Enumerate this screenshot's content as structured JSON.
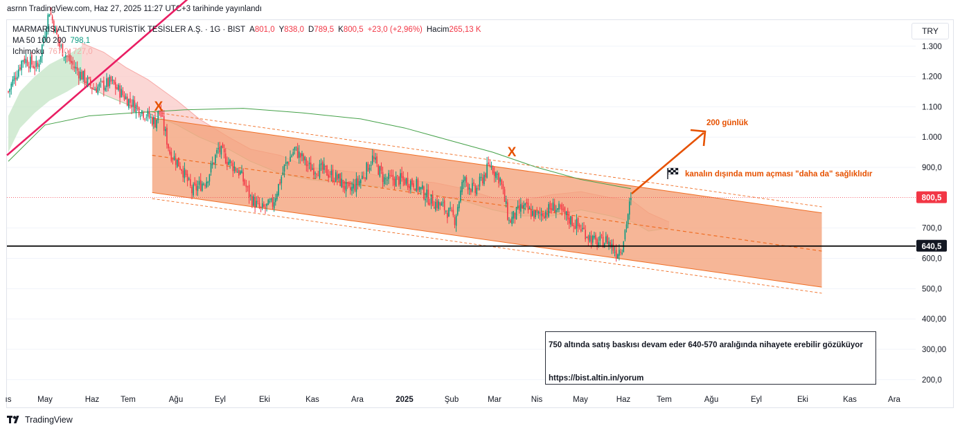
{
  "header": {
    "published": "asrnn TradingView.com, Haz 27, 2025 11:27 UTC+3 tarihinde yayınlandı"
  },
  "legend": {
    "symbol": "MARMARİS ALTINYUNUS TURİSTİK TESİSLER A.Ş. · 1G · BIST",
    "ohlc": [
      {
        "label": "A",
        "value": "801,0"
      },
      {
        "label": "Y",
        "value": "838,0"
      },
      {
        "label": "D",
        "value": "789,5"
      },
      {
        "label": "K",
        "value": "800,5"
      }
    ],
    "change": "+23,0 (+2,96%)",
    "volume_label": "Hacim",
    "volume_value": "265,13 K",
    "ma_label": "MA 50 100 200",
    "ma_value": "798,1",
    "ichimoku_label": "Ichimoku",
    "ichimoku_values": [
      "767,0",
      "727,0"
    ]
  },
  "currency": "TRY",
  "colors": {
    "up": "#089981",
    "down": "#f23645",
    "channel_fill": "#f4a27a",
    "channel_line": "#f06d23",
    "trendline": "#e91e63",
    "ma": "#43a047",
    "cloud_red": "#f9c9c7",
    "cloud_green": "#c8e6c9",
    "support": "#000000",
    "annotation": "#e65100"
  },
  "annotations": {
    "arrow_label": "200 günlük",
    "flag_text": "kanalın dışında mum açması \"daha da\" sağlıklıdır",
    "marks": [
      "X",
      "X"
    ],
    "note_line1": "750 altında satış baskısı devam eder 640-570 aralığında nihayete erebilir gözüküyor",
    "note_line2": "https://bist.altin.in/yorum"
  },
  "chart_data": {
    "type": "candlestick",
    "y_ticks": [
      "1.300",
      "1.200",
      "1.100",
      "1.000",
      "900,0",
      "700,0",
      "600,0",
      "500,0",
      "400,00",
      "300,00",
      "200,0"
    ],
    "y_tick_values": [
      1300,
      1200,
      1100,
      1000,
      900,
      700,
      600,
      500,
      400,
      300,
      200
    ],
    "x_ticks": [
      "ıs",
      "May",
      "Haz",
      "Tem",
      "Ağu",
      "Eyl",
      "Eki",
      "Kas",
      "Ara",
      "2025",
      "Şub",
      "Mar",
      "Nis",
      "May",
      "Haz",
      "Tem",
      "Ağu",
      "Eyl",
      "Eki",
      "Kas",
      "Ara"
    ],
    "price_labels": [
      {
        "value": 800.5,
        "text": "800,5",
        "color": "#f23645"
      },
      {
        "value": 640.5,
        "text": "640,5",
        "color": "#131722"
      }
    ],
    "support_level": 640.5,
    "anchors": [
      [
        0,
        1150
      ],
      [
        10,
        1260
      ],
      [
        20,
        1230
      ],
      [
        28,
        1420
      ],
      [
        35,
        1300
      ],
      [
        45,
        1230
      ],
      [
        58,
        1160
      ],
      [
        70,
        1180
      ],
      [
        82,
        1120
      ],
      [
        90,
        1090
      ],
      [
        100,
        1050
      ],
      [
        103,
        1090
      ],
      [
        110,
        950
      ],
      [
        118,
        900
      ],
      [
        125,
        820
      ],
      [
        135,
        860
      ],
      [
        143,
        960
      ],
      [
        150,
        920
      ],
      [
        158,
        880
      ],
      [
        165,
        800
      ],
      [
        172,
        760
      ],
      [
        180,
        780
      ],
      [
        188,
        900
      ],
      [
        195,
        960
      ],
      [
        205,
        900
      ],
      [
        215,
        890
      ],
      [
        225,
        860
      ],
      [
        232,
        820
      ],
      [
        240,
        860
      ],
      [
        248,
        930
      ],
      [
        256,
        860
      ],
      [
        266,
        860
      ],
      [
        276,
        850
      ],
      [
        288,
        790
      ],
      [
        296,
        770
      ],
      [
        304,
        730
      ],
      [
        310,
        860
      ],
      [
        318,
        820
      ],
      [
        328,
        910
      ],
      [
        335,
        860
      ],
      [
        341,
        720
      ],
      [
        350,
        770
      ],
      [
        360,
        740
      ],
      [
        372,
        770
      ],
      [
        382,
        730
      ],
      [
        392,
        690
      ],
      [
        400,
        650
      ],
      [
        408,
        660
      ],
      [
        414,
        620
      ],
      [
        418,
        640
      ],
      [
        424,
        800
      ]
    ],
    "ma200": [
      [
        0,
        920
      ],
      [
        25,
        1040
      ],
      [
        55,
        1070
      ],
      [
        85,
        1080
      ],
      [
        120,
        1090
      ],
      [
        160,
        1095
      ],
      [
        200,
        1080
      ],
      [
        240,
        1060
      ],
      [
        270,
        1030
      ],
      [
        300,
        990
      ],
      [
        330,
        950
      ],
      [
        360,
        900
      ],
      [
        390,
        860
      ],
      [
        424,
        830
      ]
    ],
    "ichimoku_cloud": {
      "upper": [
        [
          50,
          1310
        ],
        [
          65,
          1280
        ],
        [
          80,
          1230
        ],
        [
          95,
          1190
        ],
        [
          115,
          1120
        ],
        [
          130,
          1060
        ],
        [
          150,
          1000
        ],
        [
          165,
          960
        ],
        [
          185,
          940
        ],
        [
          205,
          900
        ],
        [
          225,
          890
        ],
        [
          245,
          880
        ],
        [
          265,
          860
        ],
        [
          290,
          850
        ],
        [
          310,
          830
        ],
        [
          330,
          800
        ],
        [
          350,
          790
        ],
        [
          370,
          810
        ],
        [
          390,
          820
        ],
        [
          410,
          800
        ],
        [
          425,
          790
        ],
        [
          436,
          750
        ],
        [
          450,
          720
        ]
      ],
      "lower": [
        [
          50,
          1180
        ],
        [
          65,
          1140
        ],
        [
          80,
          1110
        ],
        [
          95,
          1080
        ],
        [
          115,
          1040
        ],
        [
          130,
          1000
        ],
        [
          150,
          960
        ],
        [
          165,
          920
        ],
        [
          185,
          880
        ],
        [
          205,
          860
        ],
        [
          225,
          850
        ],
        [
          245,
          840
        ],
        [
          265,
          830
        ],
        [
          290,
          810
        ],
        [
          310,
          790
        ],
        [
          330,
          760
        ],
        [
          350,
          740
        ],
        [
          370,
          740
        ],
        [
          390,
          760
        ],
        [
          410,
          740
        ],
        [
          425,
          720
        ],
        [
          436,
          690
        ],
        [
          450,
          700
        ]
      ]
    },
    "channel": {
      "start_bar": 98,
      "end_bar": 554,
      "upper": [
        1063,
        750
      ],
      "mid": [
        940,
        624
      ],
      "lower": [
        817,
        505
      ]
    },
    "trendline": [
      [
        0,
        940
      ],
      [
        140,
        1530
      ]
    ],
    "xlabel": "",
    "ylabel": ""
  }
}
